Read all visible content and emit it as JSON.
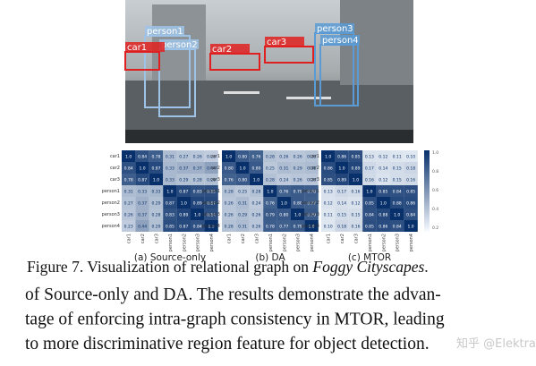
{
  "photo": {
    "boxes": [
      "person1",
      "person2",
      "car1",
      "car2",
      "car3",
      "person3",
      "person4"
    ]
  },
  "heatmaps": {
    "row_labels": [
      "car1",
      "car2",
      "car3",
      "person1",
      "person2",
      "person3",
      "person4"
    ],
    "colorbar_ticks": [
      "1.0",
      "0.8",
      "0.6",
      "0.4",
      "0.2"
    ],
    "panels": [
      {
        "caption": "(a) Source-only",
        "cells": [
          [
            "1.0",
            "0.84",
            "0.78",
            "0.31",
            "0.27",
            "0.26",
            "0.23"
          ],
          [
            "0.84",
            "1.0",
            "0.87",
            "0.33",
            "0.37",
            "0.37",
            "0.44"
          ],
          [
            "0.78",
            "0.87",
            "1.0",
            "0.33",
            "0.29",
            "0.28",
            "0.29"
          ],
          [
            "0.31",
            "0.33",
            "0.33",
            "1.0",
            "0.87",
            "0.83",
            "0.85"
          ],
          [
            "0.27",
            "0.37",
            "0.29",
            "0.87",
            "1.0",
            "0.89",
            "0.87"
          ],
          [
            "0.26",
            "0.37",
            "0.28",
            "0.83",
            "0.89",
            "1.0",
            "0.84"
          ],
          [
            "0.23",
            "0.44",
            "0.29",
            "0.85",
            "0.87",
            "0.84",
            "1.0"
          ]
        ]
      },
      {
        "caption": "(b) DA",
        "cells": [
          [
            "1.0",
            "0.80",
            "0.76",
            "0.28",
            "0.26",
            "0.26",
            "0.28"
          ],
          [
            "0.80",
            "1.0",
            "0.80",
            "0.25",
            "0.31",
            "0.29",
            "0.31"
          ],
          [
            "0.76",
            "0.80",
            "1.0",
            "0.28",
            "0.24",
            "0.26",
            "0.26"
          ],
          [
            "0.28",
            "0.25",
            "0.28",
            "1.0",
            "0.76",
            "0.79",
            "0.78"
          ],
          [
            "0.26",
            "0.31",
            "0.24",
            "0.76",
            "1.0",
            "0.80",
            "0.77"
          ],
          [
            "0.26",
            "0.29",
            "0.26",
            "0.79",
            "0.80",
            "1.0",
            "0.79"
          ],
          [
            "0.28",
            "0.31",
            "0.26",
            "0.78",
            "0.77",
            "0.79",
            "1.0"
          ]
        ]
      },
      {
        "caption": "(c) MTOR",
        "cells": [
          [
            "1.0",
            "0.86",
            "0.85",
            "0.13",
            "0.12",
            "0.11",
            "0.10"
          ],
          [
            "0.86",
            "1.0",
            "0.89",
            "0.17",
            "0.14",
            "0.15",
            "0.18"
          ],
          [
            "0.85",
            "0.89",
            "1.0",
            "0.16",
            "0.12",
            "0.15",
            "0.16"
          ],
          [
            "0.13",
            "0.17",
            "0.16",
            "1.0",
            "0.85",
            "0.84",
            "0.85"
          ],
          [
            "0.12",
            "0.14",
            "0.12",
            "0.85",
            "1.0",
            "0.88",
            "0.86"
          ],
          [
            "0.11",
            "0.15",
            "0.15",
            "0.84",
            "0.88",
            "1.0",
            "0.84"
          ],
          [
            "0.10",
            "0.18",
            "0.16",
            "0.85",
            "0.86",
            "0.84",
            "1.0"
          ]
        ]
      }
    ]
  },
  "caption": {
    "prefix": "Figure 7. Visualization of relational graph on ",
    "emphasis": "Foggy Cityscapes",
    "suffix": "."
  },
  "body": [
    "of Source-only and DA. The results demonstrate the advan-",
    "tage of enforcing intra-graph consistency in MTOR, leading",
    "to more discriminative region feature for object detection."
  ],
  "watermark": "知乎 @Elektra"
}
